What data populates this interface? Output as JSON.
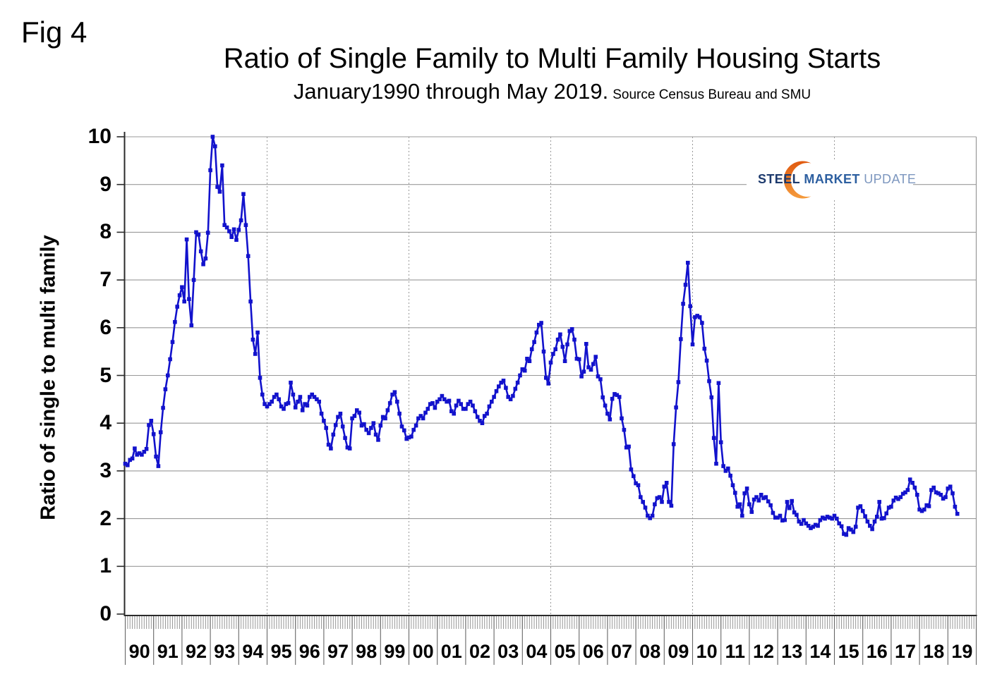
{
  "header": {
    "fig_label": "Fig 4",
    "title": "Ratio of Single Family to Multi Family Housing Starts",
    "subtitle": "January1990 through May 2019.",
    "subtitle_source": "Source Census Bureau and SMU"
  },
  "y_axis": {
    "title": "Ratio of single to multi family"
  },
  "logo": {
    "steel": "STEEL",
    "market": "MARKET",
    "update": "UPDATE"
  },
  "colors": {
    "line": "#1212cc",
    "grid": "#999999",
    "axis": "#2b2b2b",
    "month_tick": "#8c8c8c",
    "year_separator": "#666666",
    "crescent_dark": "#e05a10",
    "crescent_light": "#f59b3c"
  },
  "chart_data": {
    "type": "line",
    "title": "Ratio of Single Family to Multi Family Housing Starts",
    "subtitle": "January1990 through May 2019. Source Census Bureau and SMU",
    "ylabel": "Ratio of single to multi family",
    "xlabel": "",
    "ylim": [
      0,
      10
    ],
    "y_ticks": [
      0,
      1,
      2,
      3,
      4,
      5,
      6,
      7,
      8,
      9,
      10
    ],
    "grid": "horizontal solid each integer; dashed vertical every 5 years",
    "legend": "none",
    "marker": "square",
    "x_start": "1990-01",
    "x_end": "2019-05",
    "frequency": "monthly",
    "year_labels": [
      "90",
      "91",
      "92",
      "93",
      "94",
      "95",
      "96",
      "97",
      "98",
      "99",
      "00",
      "01",
      "02",
      "03",
      "04",
      "05",
      "06",
      "07",
      "08",
      "09",
      "10",
      "11",
      "12",
      "13",
      "14",
      "15",
      "16",
      "17",
      "18",
      "19"
    ],
    "dashed_gridline_years": [
      1995,
      2000,
      2005,
      2010,
      2015
    ],
    "values": [
      3.15,
      3.12,
      3.23,
      3.26,
      3.47,
      3.34,
      3.37,
      3.34,
      3.4,
      3.46,
      3.96,
      4.05,
      3.77,
      3.3,
      3.1,
      3.81,
      4.32,
      4.71,
      5.0,
      5.34,
      5.7,
      6.12,
      6.44,
      6.68,
      6.85,
      6.55,
      7.85,
      6.6,
      6.05,
      7.0,
      8.0,
      7.95,
      7.6,
      7.33,
      7.45,
      7.99,
      9.3,
      10.0,
      9.8,
      8.95,
      8.85,
      9.4,
      8.15,
      8.1,
      8.02,
      7.9,
      8.06,
      7.84,
      8.05,
      8.25,
      8.8,
      8.15,
      7.5,
      6.55,
      5.75,
      5.45,
      5.9,
      4.95,
      4.6,
      4.4,
      4.35,
      4.4,
      4.45,
      4.55,
      4.6,
      4.5,
      4.35,
      4.3,
      4.4,
      4.42,
      4.85,
      4.6,
      4.33,
      4.45,
      4.55,
      4.27,
      4.4,
      4.37,
      4.55,
      4.6,
      4.55,
      4.5,
      4.45,
      4.2,
      4.05,
      3.9,
      3.55,
      3.47,
      3.76,
      3.96,
      4.13,
      4.2,
      3.93,
      3.69,
      3.49,
      3.47,
      4.1,
      4.15,
      4.27,
      4.22,
      3.95,
      3.98,
      3.86,
      3.79,
      3.9,
      4.0,
      3.76,
      3.65,
      3.95,
      4.13,
      4.1,
      4.27,
      4.42,
      4.6,
      4.65,
      4.45,
      4.2,
      3.93,
      3.85,
      3.67,
      3.7,
      3.72,
      3.86,
      3.95,
      4.1,
      4.15,
      4.1,
      4.22,
      4.3,
      4.4,
      4.42,
      4.32,
      4.45,
      4.5,
      4.57,
      4.5,
      4.45,
      4.47,
      4.25,
      4.2,
      4.37,
      4.47,
      4.4,
      4.3,
      4.3,
      4.4,
      4.45,
      4.37,
      4.25,
      4.13,
      4.05,
      4.0,
      4.15,
      4.2,
      4.35,
      4.45,
      4.55,
      4.67,
      4.77,
      4.85,
      4.89,
      4.74,
      4.55,
      4.5,
      4.57,
      4.72,
      4.85,
      5.0,
      5.13,
      5.1,
      5.35,
      5.3,
      5.55,
      5.7,
      5.9,
      6.06,
      6.1,
      5.5,
      4.95,
      4.83,
      5.27,
      5.45,
      5.55,
      5.75,
      5.86,
      5.6,
      5.3,
      5.65,
      5.93,
      5.97,
      5.75,
      5.35,
      5.34,
      4.98,
      5.08,
      5.66,
      5.17,
      5.12,
      5.24,
      5.39,
      4.98,
      4.92,
      4.54,
      4.37,
      4.2,
      4.08,
      4.51,
      4.61,
      4.59,
      4.55,
      4.1,
      3.86,
      3.49,
      3.51,
      3.03,
      2.89,
      2.74,
      2.7,
      2.45,
      2.35,
      2.23,
      2.06,
      2.01,
      2.06,
      2.3,
      2.43,
      2.45,
      2.35,
      2.67,
      2.75,
      2.35,
      2.27,
      3.56,
      4.33,
      4.86,
      5.76,
      6.5,
      6.9,
      7.36,
      6.45,
      5.65,
      6.22,
      6.25,
      6.22,
      6.1,
      5.56,
      5.31,
      4.88,
      4.54,
      3.69,
      3.15,
      4.84,
      3.6,
      3.1,
      3.0,
      3.05,
      2.9,
      2.7,
      2.54,
      2.25,
      2.3,
      2.06,
      2.53,
      2.63,
      2.3,
      2.14,
      2.4,
      2.45,
      2.38,
      2.5,
      2.43,
      2.45,
      2.36,
      2.28,
      2.12,
      2.02,
      2.02,
      2.06,
      1.96,
      1.97,
      2.35,
      2.22,
      2.37,
      2.13,
      2.08,
      1.94,
      1.89,
      1.97,
      1.9,
      1.85,
      1.8,
      1.83,
      1.87,
      1.85,
      1.97,
      2.02,
      2.0,
      2.04,
      2.02,
      2.0,
      2.06,
      2.0,
      1.9,
      1.84,
      1.68,
      1.66,
      1.8,
      1.77,
      1.72,
      1.83,
      2.23,
      2.26,
      2.16,
      2.05,
      1.94,
      1.85,
      1.78,
      1.94,
      2.04,
      2.35,
      2.0,
      2.01,
      2.11,
      2.23,
      2.25,
      2.38,
      2.44,
      2.41,
      2.45,
      2.52,
      2.55,
      2.6,
      2.82,
      2.75,
      2.65,
      2.5,
      2.19,
      2.16,
      2.19,
      2.28,
      2.26,
      2.6,
      2.65,
      2.55,
      2.53,
      2.5,
      2.42,
      2.45,
      2.63,
      2.67,
      2.53,
      2.25,
      2.1
    ]
  }
}
